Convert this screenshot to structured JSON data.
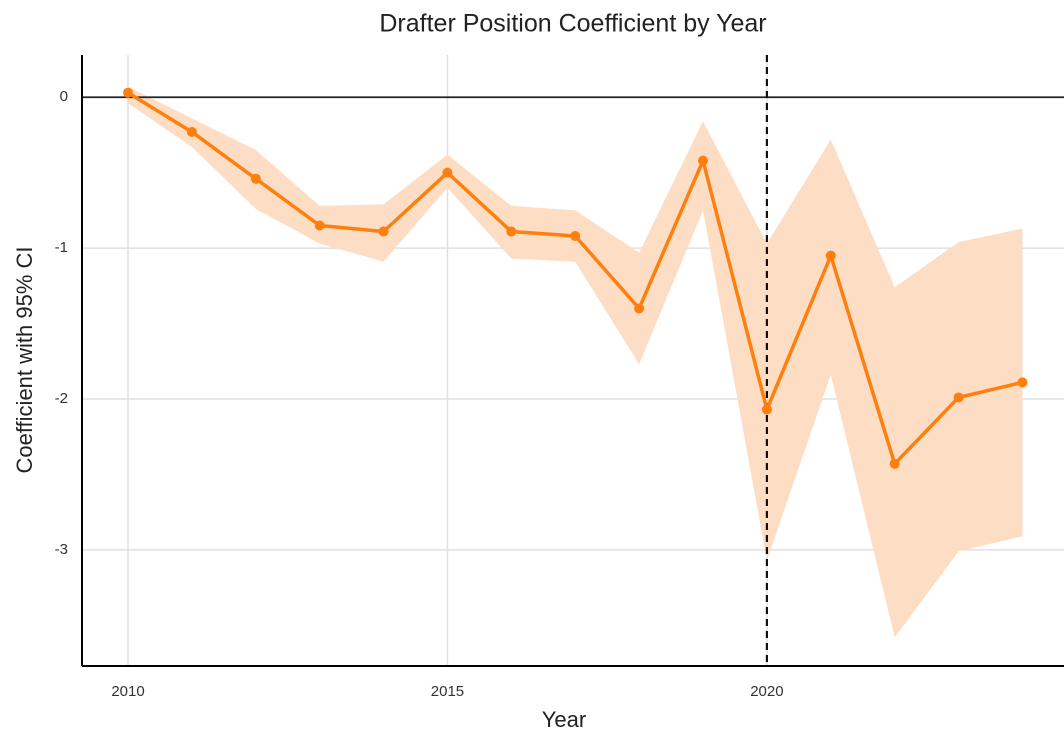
{
  "chart_data": {
    "type": "line",
    "title": "Drafter Position Coefficient by Year",
    "xlabel": "Year",
    "ylabel": "Coefficient with 95% CI",
    "x": [
      2010,
      2011,
      2012,
      2013,
      2014,
      2015,
      2016,
      2017,
      2018,
      2019,
      2020,
      2021,
      2022,
      2023,
      2024
    ],
    "series": [
      {
        "color": "#ff7f0e",
        "band_color": "#fdddc4",
        "values": [
          0.03,
          -0.23,
          -0.54,
          -0.85,
          -0.89,
          -0.5,
          -0.89,
          -0.92,
          -1.4,
          -0.42,
          -2.07,
          -1.05,
          -2.43,
          -1.99,
          -1.89
        ],
        "ci_upper": [
          0.07,
          -0.14,
          -0.35,
          -0.72,
          -0.71,
          -0.38,
          -0.72,
          -0.75,
          -1.03,
          -0.16,
          -0.97,
          -0.28,
          -1.26,
          -0.96,
          -0.87
        ],
        "ci_lower": [
          -0.04,
          -0.33,
          -0.74,
          -0.97,
          -1.09,
          -0.6,
          -1.07,
          -1.09,
          -1.77,
          -0.75,
          -3.07,
          -1.84,
          -3.58,
          -3.01,
          -2.91
        ]
      }
    ],
    "xlim": [
      2009.28,
      2024.65
    ],
    "ylim": [
      -3.77,
      0.28
    ],
    "xticks": [
      2010,
      2015,
      2020
    ],
    "yticks": [
      0,
      -1,
      -2,
      -3
    ],
    "hline": 0,
    "vline": 2020,
    "grid": true
  }
}
